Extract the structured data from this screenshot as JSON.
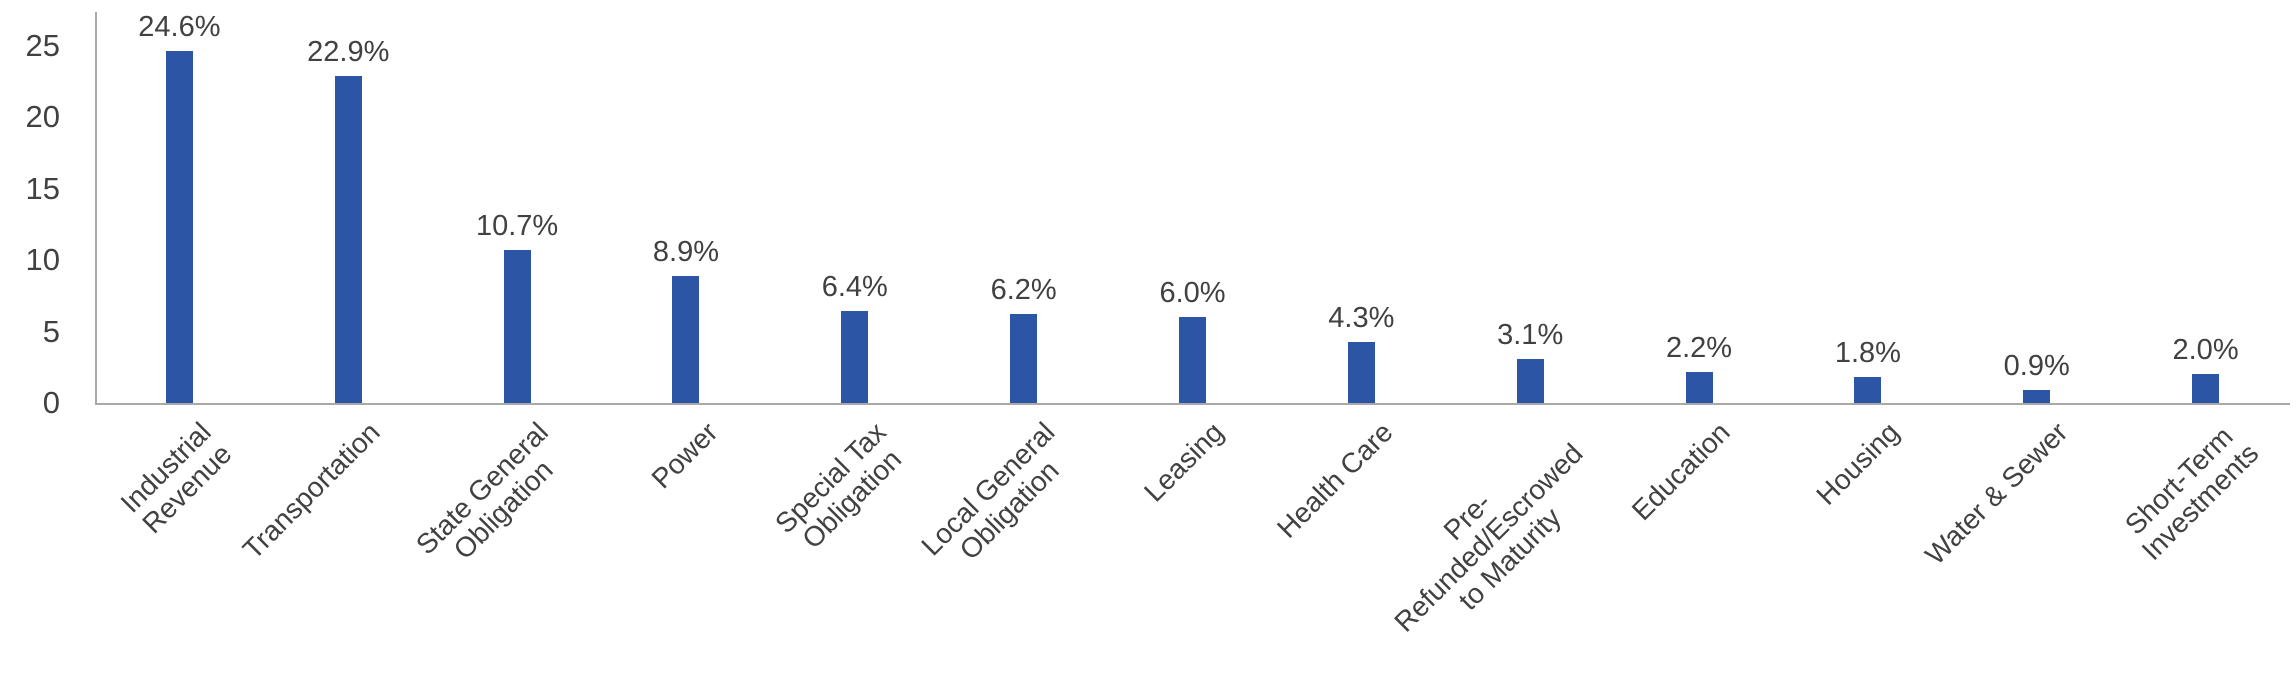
{
  "chart_data": {
    "type": "bar",
    "title": "",
    "xlabel": "",
    "ylabel": "",
    "categories": [
      "Industrial\nRevenue",
      "Transportation",
      "State General\nObligation",
      "Power",
      "Special Tax\nObligation",
      "Local General\nObligation",
      "Leasing",
      "Health Care",
      "Pre-\nRefunded/Escrowed\nto Maturity",
      "Education",
      "Housing",
      "Water & Sewer",
      "Short-Term\nInvestments"
    ],
    "values": [
      24.6,
      22.9,
      10.7,
      8.9,
      6.4,
      6.2,
      6.0,
      4.3,
      3.1,
      2.2,
      1.8,
      0.9,
      2.0
    ],
    "data_labels": [
      "24.6%",
      "22.9%",
      "10.7%",
      "8.9%",
      "6.4%",
      "6.2%",
      "6.0%",
      "4.3%",
      "3.1%",
      "2.2%",
      "1.8%",
      "0.9%",
      "2.0%"
    ],
    "y_ticks": [
      0,
      5,
      10,
      15,
      20,
      25
    ],
    "ylim": [
      0,
      25
    ],
    "grid": false,
    "legend_position": "none",
    "category_rotation_deg": 45,
    "colors": {
      "bar": "#2c55a5",
      "axis": "#a8a8a8",
      "text": "#414141",
      "background": "#ffffff"
    }
  }
}
